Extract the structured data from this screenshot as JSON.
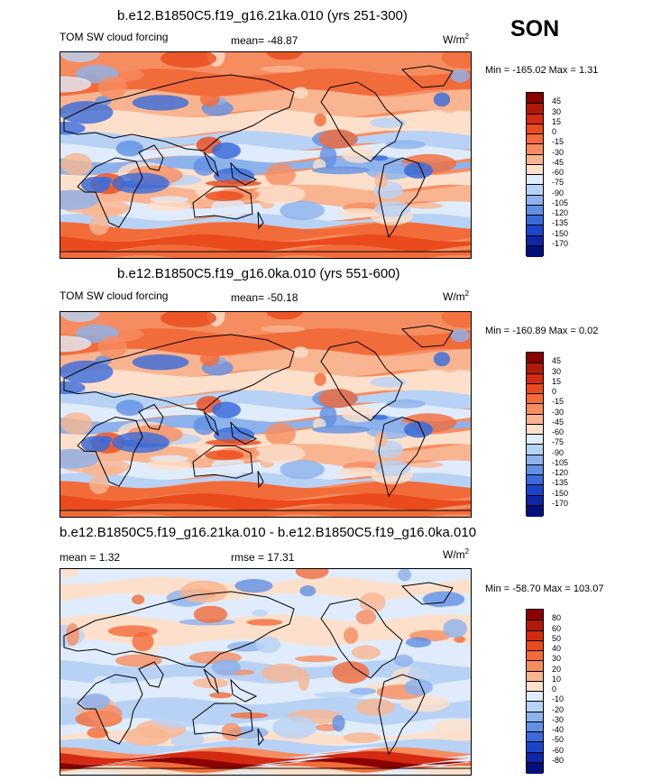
{
  "season": "SON",
  "panels": [
    {
      "title": "b.e12.B1850C5.f19_g16.21ka.010 (yrs 251-300)",
      "left_label": "TOM SW cloud forcing",
      "center_label": "mean= -48.87",
      "units": "W/m",
      "units_exp": "2",
      "minmax": "Min = -165.02 Max =   1.31",
      "levels": [
        "45",
        "30",
        "15",
        "0",
        "-15",
        "-30",
        "-45",
        "-60",
        "-75",
        "-90",
        "-105",
        "-120",
        "-135",
        "-150",
        "-170"
      ],
      "colors": [
        "#8b0000",
        "#b01a0a",
        "#d42a12",
        "#ea4a1c",
        "#f26b3a",
        "#f68d61",
        "#f9b591",
        "#fde0cb",
        "#e0ecfb",
        "#b8d2f5",
        "#8db2ec",
        "#6290e3",
        "#3a6bd9",
        "#1b45c8",
        "#0f26a7",
        "#03107a"
      ]
    },
    {
      "title": "b.e12.B1850C5.f19_g16.0ka.010 (yrs 551-600)",
      "left_label": "TOM SW cloud forcing",
      "center_label": "mean= -50.18",
      "units": "W/m",
      "units_exp": "2",
      "minmax": "Min = -160.89 Max =   0.02",
      "levels": [
        "45",
        "30",
        "15",
        "0",
        "-15",
        "-30",
        "-45",
        "-60",
        "-75",
        "-90",
        "-105",
        "-120",
        "-135",
        "-150",
        "-170"
      ],
      "colors": [
        "#8b0000",
        "#b01a0a",
        "#d42a12",
        "#ea4a1c",
        "#f26b3a",
        "#f68d61",
        "#f9b591",
        "#fde0cb",
        "#e0ecfb",
        "#b8d2f5",
        "#8db2ec",
        "#6290e3",
        "#3a6bd9",
        "#1b45c8",
        "#0f26a7",
        "#03107a"
      ]
    },
    {
      "title": "b.e12.B1850C5.f19_g16.21ka.010 - b.e12.B1850C5.f19_g16.0ka.010",
      "left_label": "mean =   1.32",
      "center_label": "rmse =  17.31",
      "units": "W/m",
      "units_exp": "2",
      "minmax": "Min = -58.70 Max = 103.07",
      "levels": [
        "80",
        "60",
        "50",
        "40",
        "30",
        "20",
        "10",
        "0",
        "-10",
        "-20",
        "-30",
        "-40",
        "-50",
        "-60",
        "-80"
      ],
      "colors": [
        "#8b0000",
        "#b01a0a",
        "#d42a12",
        "#ea4a1c",
        "#f26b3a",
        "#f68d61",
        "#f9b591",
        "#fde0cb",
        "#e0ecfb",
        "#b8d2f5",
        "#8db2ec",
        "#6290e3",
        "#3a6bd9",
        "#1b45c8",
        "#0f26a7",
        "#03107a"
      ]
    }
  ],
  "chart_data": [
    {
      "type": "heatmap",
      "title": "b.e12.B1850C5.f19_g16.21ka.010 (yrs 251-300)",
      "variable": "TOM SW cloud forcing",
      "units": "W/m2",
      "mean": -48.87,
      "min": -165.02,
      "max": 1.31,
      "contour_levels": [
        45,
        30,
        15,
        0,
        -15,
        -30,
        -45,
        -60,
        -75,
        -90,
        -105,
        -120,
        -135,
        -150,
        -170
      ]
    },
    {
      "type": "heatmap",
      "title": "b.e12.B1850C5.f19_g16.0ka.010 (yrs 551-600)",
      "variable": "TOM SW cloud forcing",
      "units": "W/m2",
      "mean": -50.18,
      "min": -160.89,
      "max": 0.02,
      "contour_levels": [
        45,
        30,
        15,
        0,
        -15,
        -30,
        -45,
        -60,
        -75,
        -90,
        -105,
        -120,
        -135,
        -150,
        -170
      ]
    },
    {
      "type": "heatmap",
      "title": "b.e12.B1850C5.f19_g16.21ka.010 - b.e12.B1850C5.f19_g16.0ka.010",
      "units": "W/m2",
      "mean": 1.32,
      "rmse": 17.31,
      "min": -58.7,
      "max": 103.07,
      "contour_levels": [
        80,
        60,
        50,
        40,
        30,
        20,
        10,
        0,
        -10,
        -20,
        -30,
        -40,
        -50,
        -60,
        -80
      ]
    }
  ]
}
